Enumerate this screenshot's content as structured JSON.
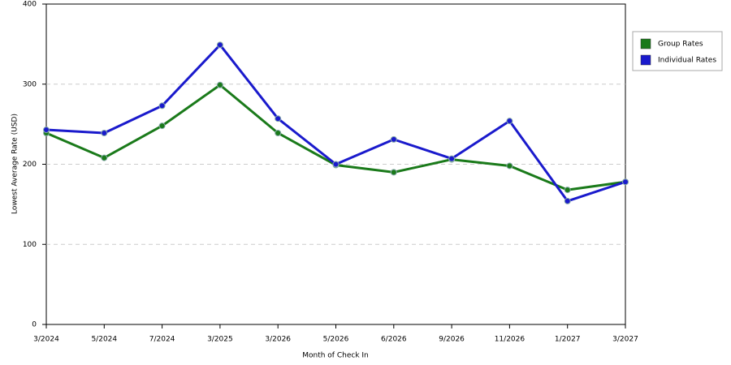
{
  "chart_data": {
    "type": "line",
    "x_label": "Month of Check In",
    "y_label": "Lowest Average Rate (USD)",
    "categories": [
      "3/2024",
      "5/2024",
      "7/2024",
      "3/2025",
      "3/2026",
      "5/2026",
      "6/2026",
      "9/2026",
      "11/2026",
      "1/2027",
      "3/2027"
    ],
    "series": [
      {
        "name": "Group Rates",
        "color": "#1a7a1a",
        "values": [
          239,
          208,
          248,
          299,
          239,
          199,
          190,
          206,
          198,
          168,
          178
        ]
      },
      {
        "name": "Individual Rates",
        "color": "#1a1acc",
        "values": [
          243,
          239,
          273,
          349,
          257,
          200,
          231,
          207,
          254,
          154,
          178
        ]
      }
    ],
    "ylim": [
      0,
      400
    ],
    "yticks": [
      0,
      100,
      200,
      300,
      400
    ],
    "grid": true
  }
}
